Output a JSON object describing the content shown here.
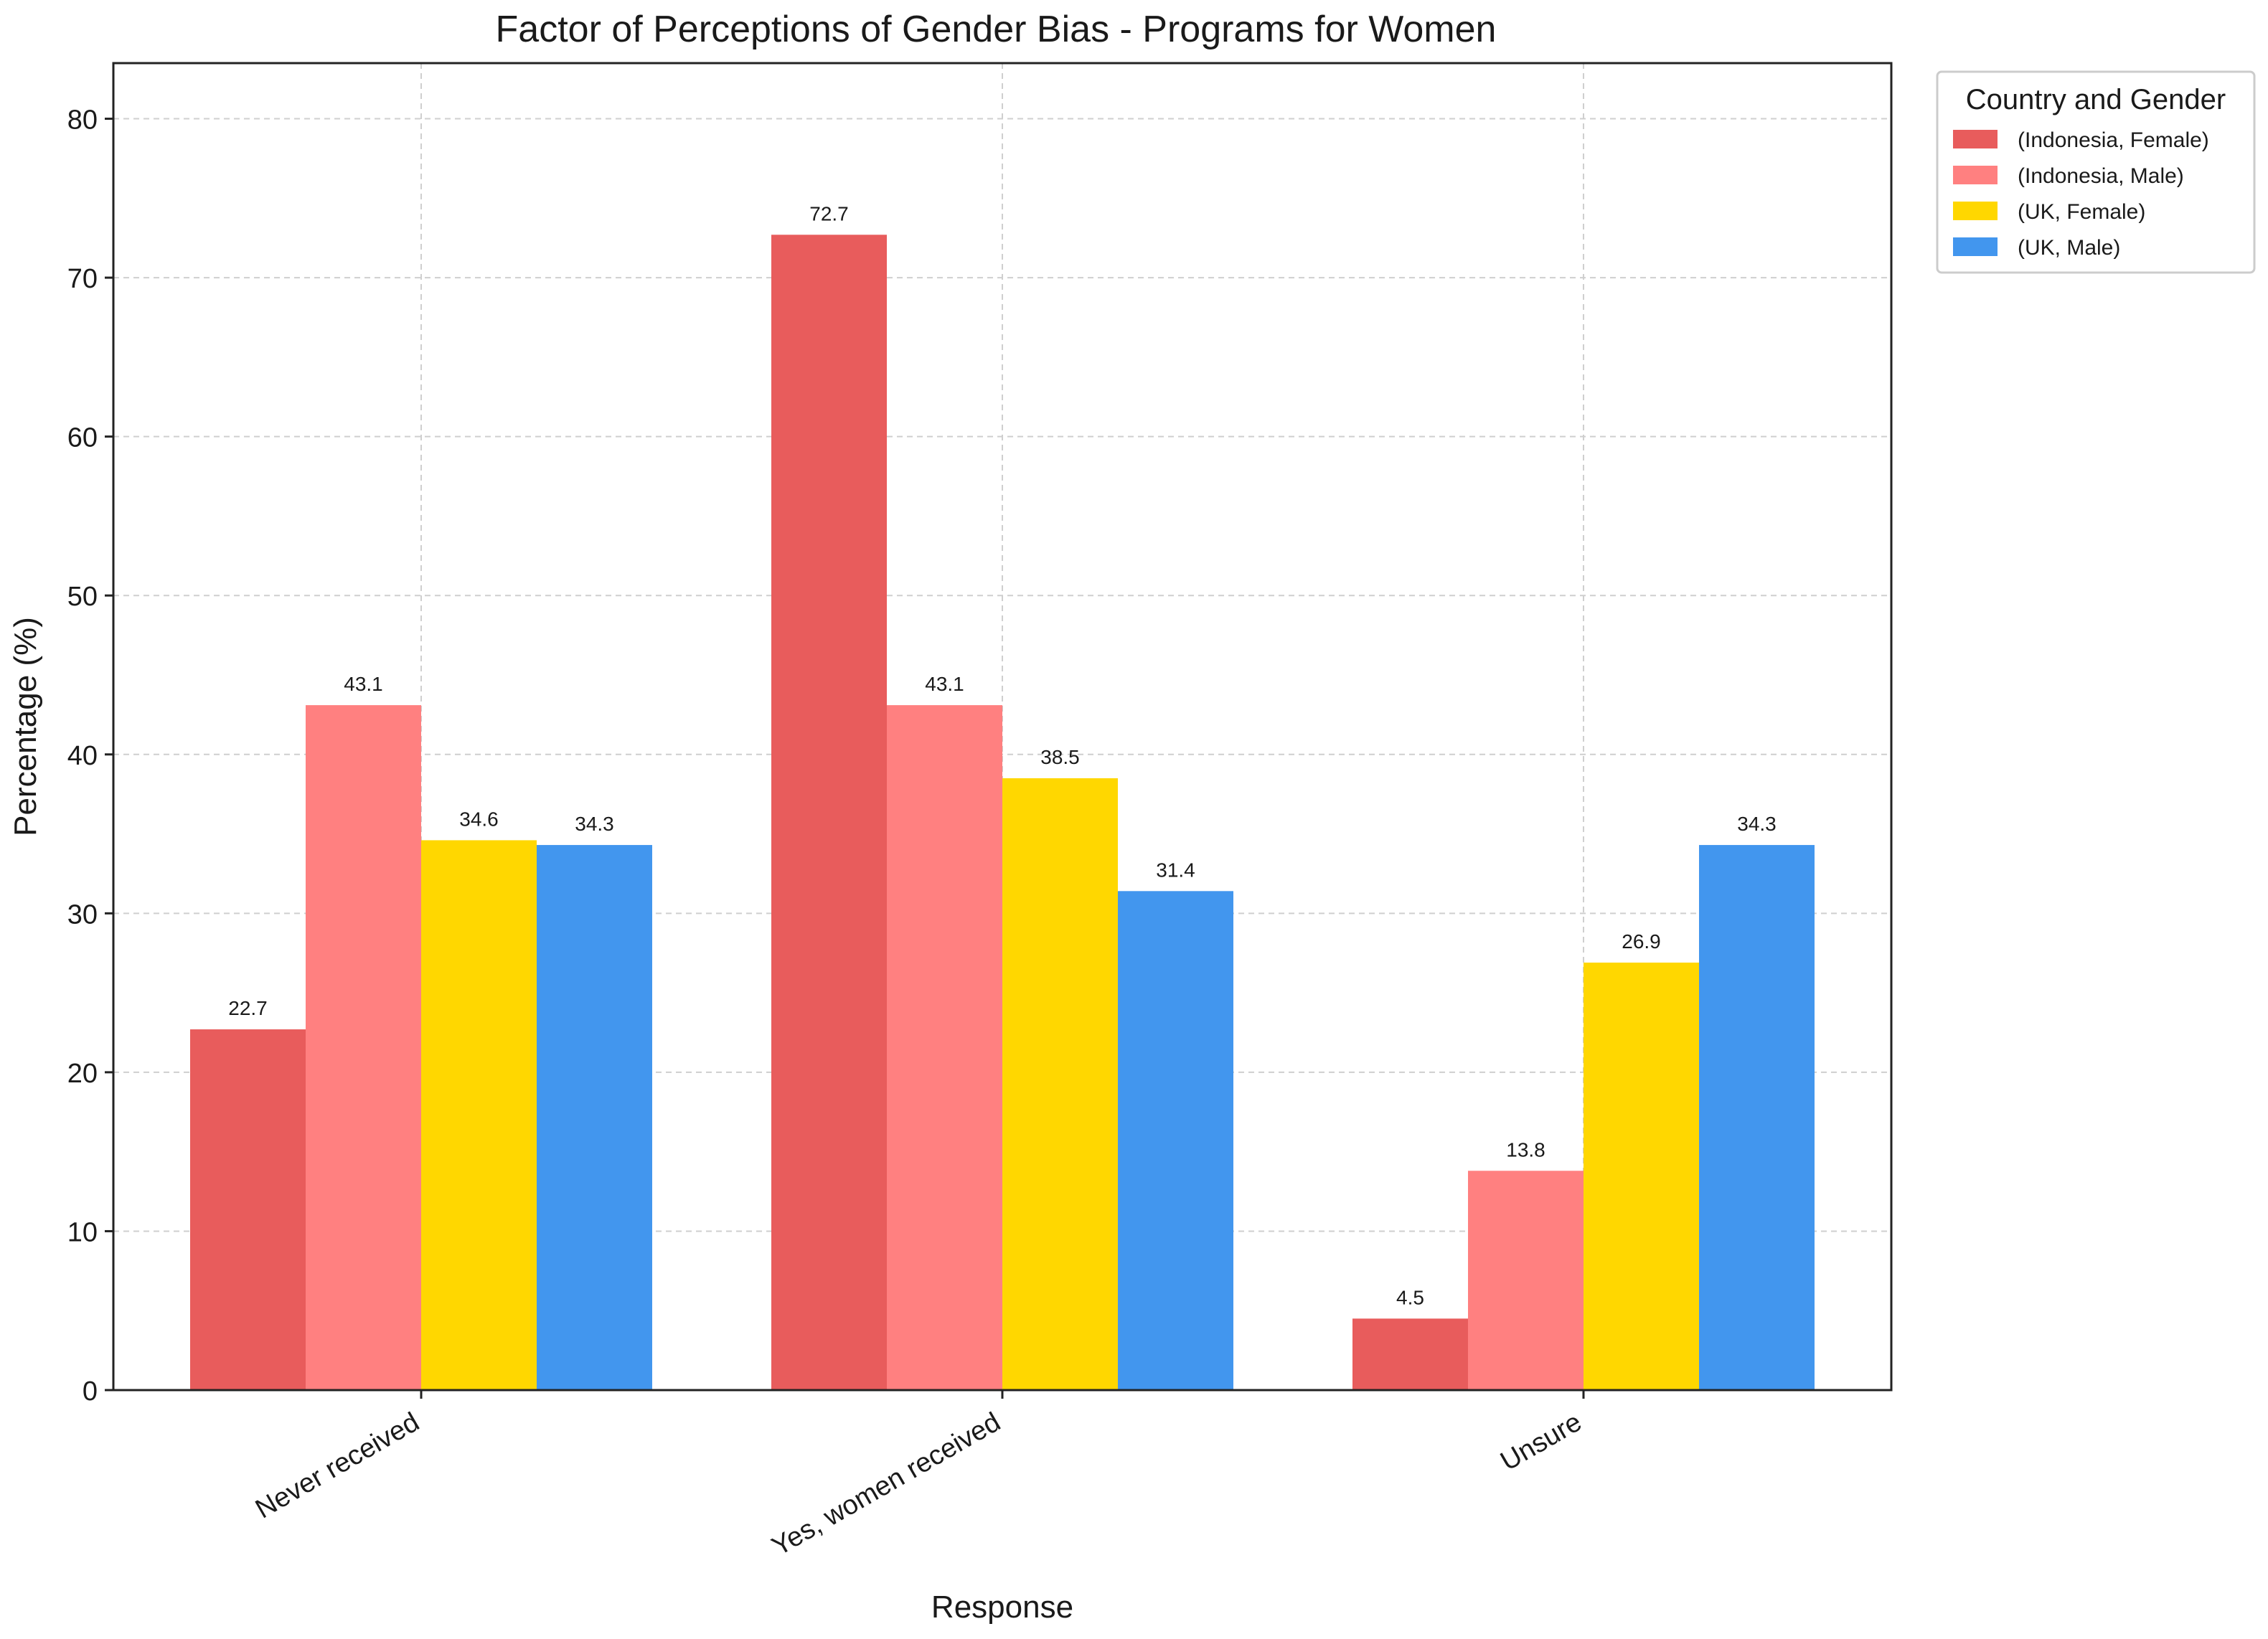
{
  "chart_data": {
    "type": "bar",
    "title": "Factor of Perceptions of Gender Bias - Programs for Women",
    "xlabel": "Response",
    "ylabel": "Percentage (%)",
    "ylim": [
      0,
      83.5
    ],
    "yticks": [
      0,
      10,
      20,
      30,
      40,
      50,
      60,
      70,
      80
    ],
    "grid": true,
    "categories": [
      "Never received",
      "Yes, women received",
      "Unsure"
    ],
    "series": [
      {
        "name": "(Indonesia, Female)",
        "color": "#E85C5C",
        "values": [
          22.7,
          72.7,
          4.5
        ],
        "labels": [
          "22.7",
          "72.7",
          "4.5"
        ]
      },
      {
        "name": "(Indonesia, Male)",
        "color": "#FF8080",
        "values": [
          43.1,
          43.1,
          13.8
        ],
        "labels": [
          "43.1",
          "43.1",
          "13.8"
        ]
      },
      {
        "name": "(UK, Female)",
        "color": "#FFD700",
        "values": [
          34.6,
          38.5,
          26.9
        ],
        "labels": [
          "34.6",
          "38.5",
          "26.9"
        ]
      },
      {
        "name": "(UK, Male)",
        "color": "#4296EE",
        "values": [
          34.3,
          31.4,
          34.3
        ],
        "labels": [
          "34.3",
          "31.4",
          "34.3"
        ]
      }
    ],
    "legend": {
      "title": "Country and Gender",
      "position": "outside-top-right"
    }
  }
}
